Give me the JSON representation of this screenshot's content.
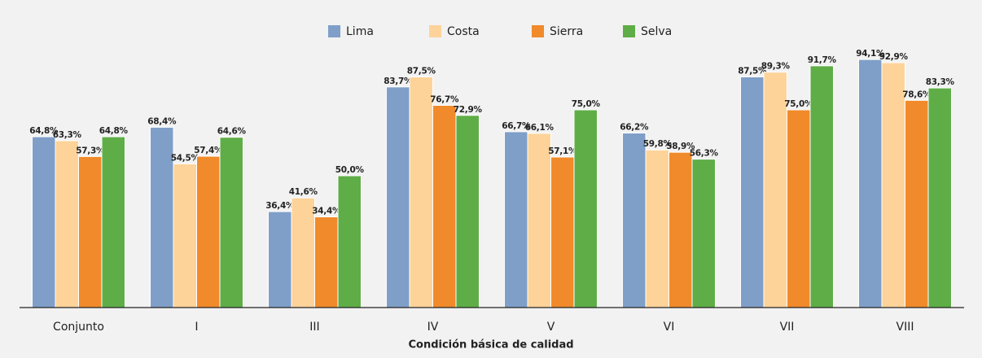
{
  "chart_data": {
    "type": "bar",
    "categories": [
      "Conjunto",
      "I",
      "III",
      "IV",
      "V",
      "VI",
      "VII",
      "VIII"
    ],
    "series": [
      {
        "name": "Lima",
        "color": "#7f9fc8",
        "values": [
          64.8,
          68.4,
          36.4,
          83.7,
          66.7,
          66.2,
          87.5,
          94.1
        ],
        "value_labels": [
          "64,8%",
          "68,4%",
          "36,4%",
          "83,7%",
          "66,7%",
          "66,2%",
          "87,5%",
          "94,1%"
        ]
      },
      {
        "name": "Costa",
        "color": "#fdd39a",
        "values": [
          63.3,
          54.5,
          41.6,
          87.5,
          66.1,
          59.8,
          89.3,
          92.9
        ],
        "value_labels": [
          "63,3%",
          "54,5%",
          "41,6%",
          "87,5%",
          "66,1%",
          "59,8%",
          "89,3%",
          "92,9%"
        ]
      },
      {
        "name": "Sierra",
        "color": "#f08a2b",
        "values": [
          57.3,
          57.4,
          34.4,
          76.7,
          57.1,
          58.9,
          75.0,
          78.6
        ],
        "value_labels": [
          "57,3%",
          "57,4%",
          "34,4%",
          "76,7%",
          "57,1%",
          "58,9%",
          "75,0%",
          "78,6%"
        ]
      },
      {
        "name": "Selva",
        "color": "#5fad47",
        "values": [
          64.8,
          64.6,
          50.0,
          72.9,
          75.0,
          56.3,
          91.7,
          83.3
        ],
        "value_labels": [
          "64,8%",
          "64,6%",
          "50,0%",
          "72,9%",
          "75,0%",
          "56,3%",
          "91,7%",
          "83,3%"
        ]
      }
    ],
    "xlabel": "Condición básica de calidad",
    "ylim": [
      0,
      100
    ],
    "legend": "top"
  }
}
